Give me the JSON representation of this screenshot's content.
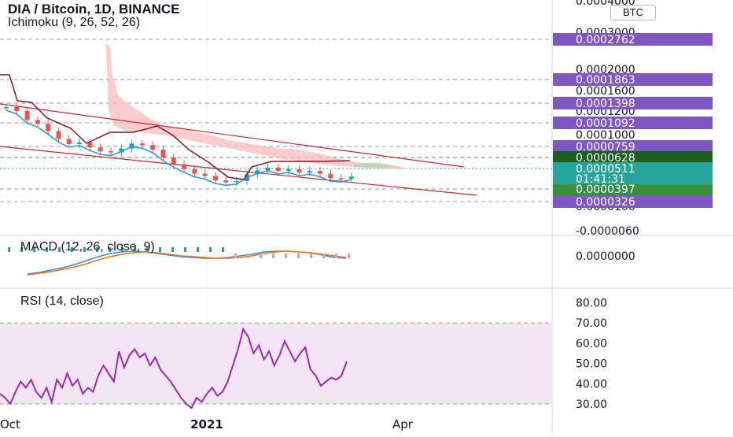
{
  "header": {
    "symbol_line": "DIA / Bitcoin, 1D, BINANCE",
    "indicator_line": "Ichimoku (9, 26, 52, 26)",
    "currency_badge": "BTC"
  },
  "chart_data": [
    {
      "type": "candlestick",
      "title": "DIA / Bitcoin, 1D, BINANCE",
      "indicator": "Ichimoku (9, 26, 52, 26)",
      "y_scale": "linear",
      "y_ticks": [
        "0.0004000",
        "0.0003000",
        "0.0002000",
        "0.0001600",
        "0.0001200",
        "0.0001000",
        "0.0000100",
        "-0.0000060"
      ],
      "price_levels": [
        {
          "label": "0.0002762",
          "value": 0.0002762,
          "color": "#7e57c2",
          "style": "dashed"
        },
        {
          "label": "0.0001863",
          "value": 0.0001863,
          "color": "#7e57c2",
          "style": "dashed"
        },
        {
          "label": "0.0001398",
          "value": 0.0001398,
          "color": "#7e57c2",
          "style": "dashed"
        },
        {
          "label": "0.0001092",
          "value": 0.0001092,
          "color": "#7e57c2",
          "style": "dashed"
        },
        {
          "label": "0.0000759",
          "value": 7.59e-05,
          "color": "#7e57c2",
          "style": "dashed"
        },
        {
          "label": "0.0000628",
          "value": 6.28e-05,
          "color": "#1b5e20",
          "style": "dashed"
        },
        {
          "label": "0.0000397",
          "value": 3.97e-05,
          "color": "#388e3c",
          "style": "dashed"
        },
        {
          "label": "0.0000326",
          "value": 3.26e-05,
          "color": "#7e57c2",
          "style": "dashed"
        }
      ],
      "last_price": {
        "value": "0.0000511",
        "countdown": "01:41:31",
        "color": "#26a69a"
      },
      "x_labels": [
        "Oct",
        "2021",
        "Apr"
      ],
      "close_series": [
        0.000175,
        0.000168,
        0.000152,
        0.000145,
        0.000132,
        0.000118,
        0.000109,
        0.000112,
        0.000103,
        9.6e-05,
        9.4e-05,
        0.000101,
        0.00011,
        0.000107,
        9.9e-05,
        8.5e-05,
        7.3e-05,
        6.4e-05,
        5.6e-05,
        5.2e-05,
        4.4e-05,
        4.1e-05,
        4.3e-05,
        5.5e-05,
        6.2e-05,
        6.7e-05,
        6.1e-05,
        6.4e-05,
        5.8e-05,
        6.1e-05,
        5.6e-05,
        4.8e-05,
        4.7e-05,
        5.1e-05
      ],
      "colors": {
        "up": "#26a69a",
        "down": "#ef5350",
        "conversion": "#2196f3",
        "base": "#801922",
        "cloud_bear": "#f8bbbb",
        "cloud_bull": "#a5d6a7",
        "channel": "#c62828"
      }
    },
    {
      "type": "line",
      "title": "MACD (12, 26, close, 9)",
      "y_ticks": [
        "0.0000000"
      ],
      "series": [
        {
          "name": "",
          "color": "#2196f3",
          "values": [
            -2.1e-05,
            -1.9e-05,
            -1.6e-05,
            -1.3e-05,
            -9e-06,
            -4e-06,
            1e-06,
            5e-06,
            7e-06,
            8e-06,
            7e-06,
            5e-06,
            3e-06,
            1e-06,
            0.0,
            -1e-06,
            -1e-06,
            0.0,
            2e-06,
            4e-06,
            7e-06,
            8e-06,
            8e-06,
            7e-06,
            6e-06,
            3e-06,
            0.0,
            -1e-06
          ]
        },
        {
          "name": "",
          "color": "#ff6d00",
          "values": [
            -2.2e-05,
            -2e-05,
            -1.8e-05,
            -1.5e-05,
            -1.2e-05,
            -8e-06,
            -3e-06,
            1e-06,
            4e-06,
            6e-06,
            7e-06,
            6e-06,
            4e-06,
            2e-06,
            1e-06,
            0.0,
            -1e-06,
            -1e-06,
            0.0,
            2e-06,
            5e-06,
            7e-06,
            8e-06,
            7e-06,
            6e-06,
            4e-06,
            2e-06,
            0.0
          ]
        }
      ]
    },
    {
      "type": "line",
      "title": "RSI (14, close)",
      "y_ticks": [
        "80.00",
        "70.00",
        "60.00",
        "50.00",
        "40.00",
        "30.00"
      ],
      "band": [
        30,
        70
      ],
      "series": [
        {
          "name": "",
          "color": "#9c27b0",
          "values": [
            35,
            33,
            30,
            36,
            41,
            38,
            42,
            36,
            33,
            38,
            31,
            42,
            38,
            45,
            39,
            42,
            35,
            38,
            36,
            44,
            49,
            45,
            41,
            56,
            48,
            54,
            57,
            53,
            55,
            49,
            53,
            47,
            44,
            41,
            37,
            33,
            30,
            28,
            33,
            31,
            35,
            38,
            34,
            36,
            41,
            49,
            57,
            67,
            63,
            55,
            59,
            52,
            56,
            49,
            54,
            61,
            56,
            51,
            55,
            58,
            47,
            44,
            39,
            41,
            43,
            42,
            44,
            51
          ]
        }
      ]
    }
  ]
}
